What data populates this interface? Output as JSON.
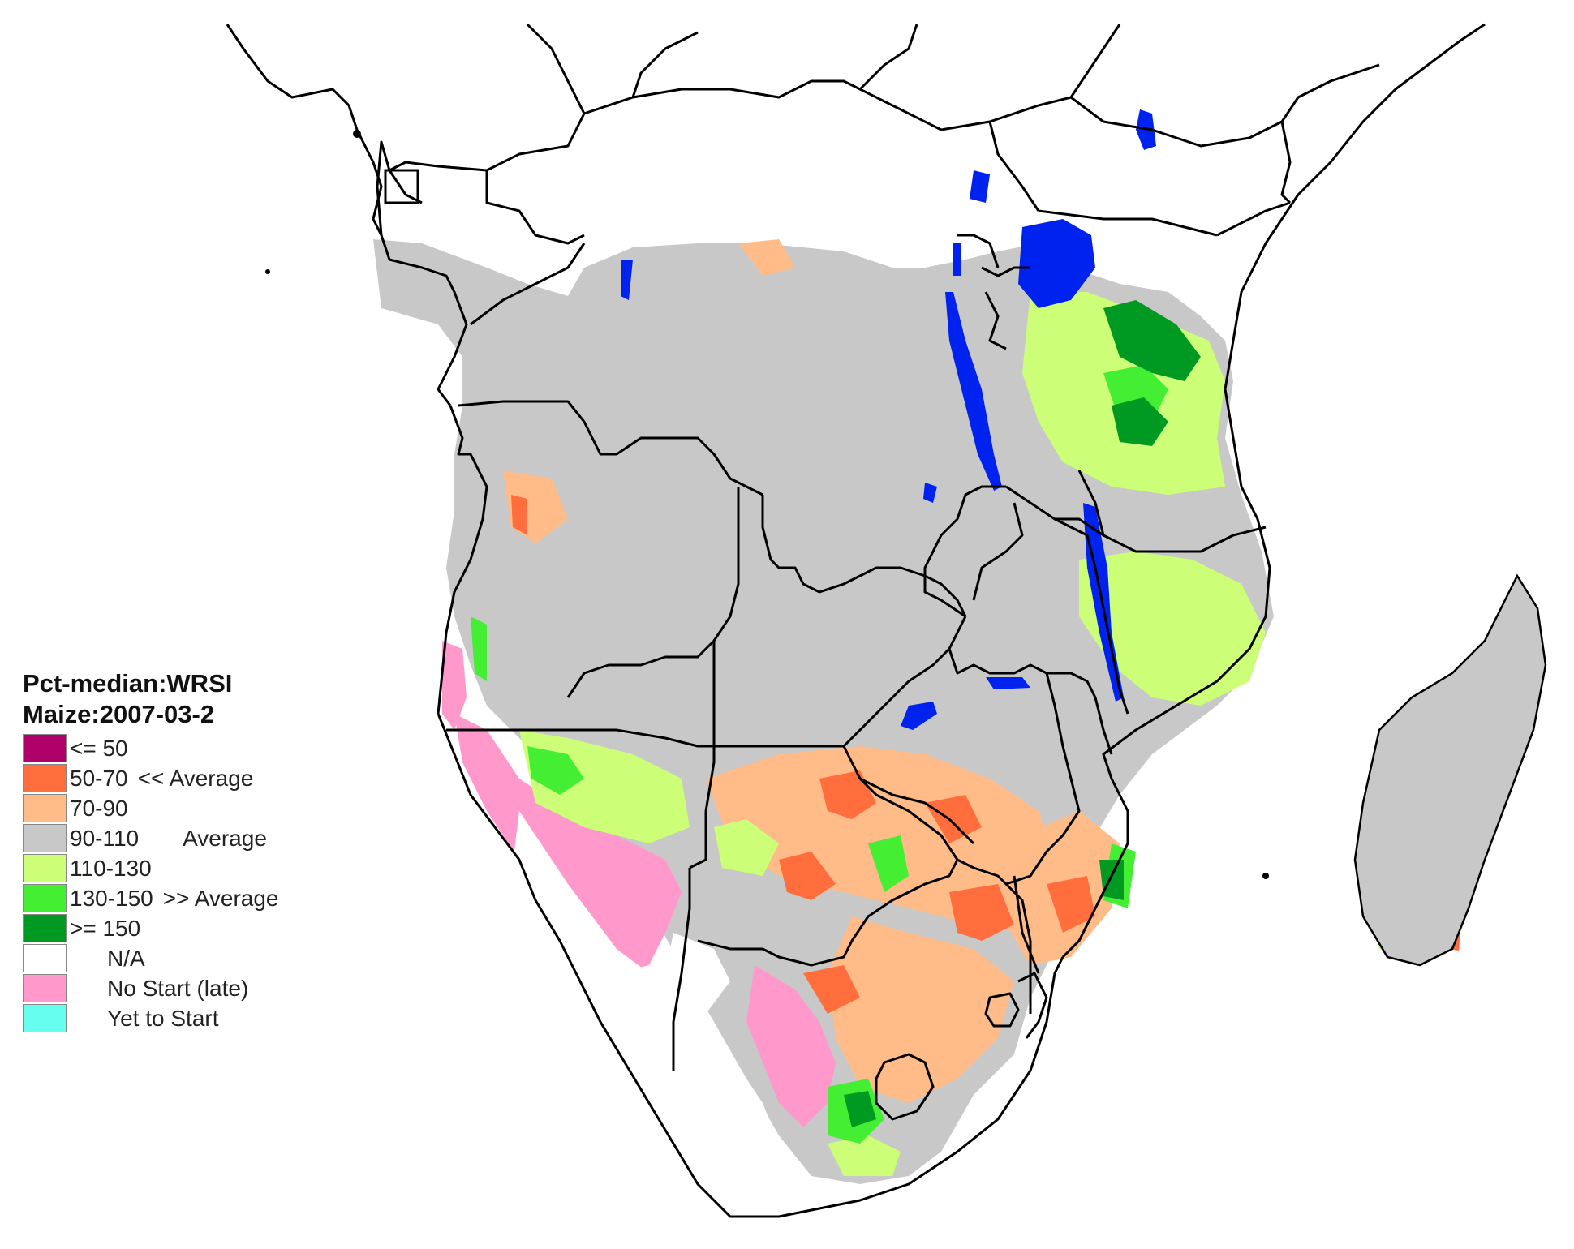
{
  "legend": {
    "title_line1": "Pct-median:WRSI",
    "title_line2": "Maize:2007-03-2",
    "items": [
      {
        "range": "<= 50",
        "note": "",
        "color": "#b0006a"
      },
      {
        "range": "50-70",
        "note": "<< Average",
        "color": "#ff6e3c"
      },
      {
        "range": "70-90",
        "note": "",
        "color": "#ffbb88"
      },
      {
        "range": "90-110",
        "note": "Average",
        "color": "#c8c8c8"
      },
      {
        "range": "110-130",
        "note": "",
        "color": "#ccff77"
      },
      {
        "range": "130-150",
        "note": ">> Average",
        "color": "#44ee33"
      },
      {
        "range": ">= 150",
        "note": "",
        "color": "#009922"
      },
      {
        "range": "N/A",
        "note": "",
        "color": "#ffffff"
      },
      {
        "range": "No Start (late)",
        "note": "",
        "color": "#ff99cc"
      },
      {
        "range": "Yet to Start",
        "note": "",
        "color": "#66ffee"
      }
    ]
  },
  "map_colors": {
    "water": "#0022ee",
    "border": "#000000"
  }
}
